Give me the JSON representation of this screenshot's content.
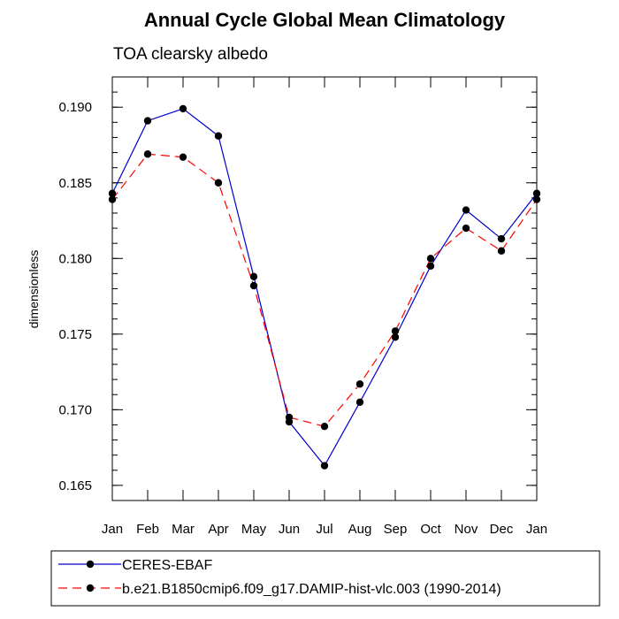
{
  "chart_data": {
    "type": "line",
    "title": "Annual Cycle Global Mean Climatology",
    "subtitle": "TOA clearsky albedo",
    "xlabel": "",
    "ylabel": "dimensionless",
    "categories": [
      "Jan",
      "Feb",
      "Mar",
      "Apr",
      "May",
      "Jun",
      "Jul",
      "Aug",
      "Sep",
      "Oct",
      "Nov",
      "Dec",
      "Jan"
    ],
    "yticks": [
      "0.165",
      "0.170",
      "0.175",
      "0.180",
      "0.185",
      "0.190"
    ],
    "ylim": [
      0.164,
      0.192
    ],
    "grid": false,
    "legend_position": "bottom",
    "series": [
      {
        "name": "CERES-EBAF",
        "color": "#0000cc",
        "line_style": "solid",
        "marker": "filled-circle",
        "values": [
          0.1843,
          0.1891,
          0.1899,
          0.1881,
          0.1788,
          0.1692,
          0.1663,
          0.1705,
          0.1748,
          0.1795,
          0.1832,
          0.1813,
          0.1843
        ]
      },
      {
        "name": "b.e21.B1850cmip6.f09_g17.DAMIP-hist-vlc.003 (1990-2014)",
        "color": "#ff0000",
        "line_style": "dashed",
        "marker": "filled-circle",
        "values": [
          0.1839,
          0.1869,
          0.1867,
          0.185,
          0.1782,
          0.1695,
          0.1689,
          0.1717,
          0.1752,
          0.18,
          0.182,
          0.1805,
          0.1839
        ]
      }
    ]
  }
}
